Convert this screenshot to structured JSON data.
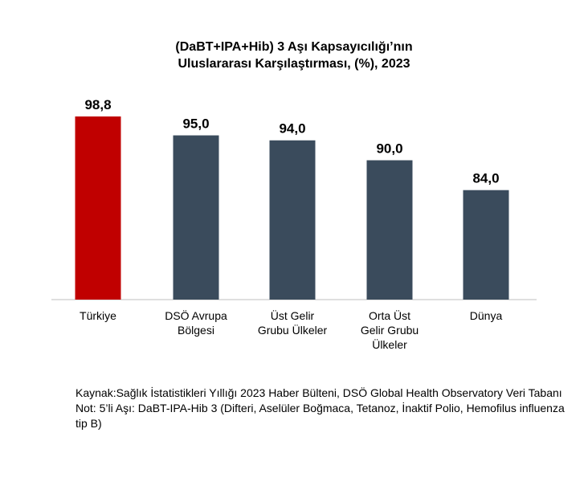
{
  "chart_data": {
    "type": "bar",
    "title_lines": [
      "(DaBT+IPA+Hib) 3 Aşı Kapsayıcılığı’nın",
      "Uluslararası Karşılaştırması, (%), 2023"
    ],
    "categories": [
      [
        "Türkiye"
      ],
      [
        "DSÖ Avrupa",
        "Bölgesi"
      ],
      [
        "Üst Gelir",
        "Grubu Ülkeler"
      ],
      [
        "Orta Üst",
        "Gelir Grubu",
        "Ülkeler"
      ],
      [
        "Dünya"
      ]
    ],
    "values": [
      98.8,
      95.0,
      94.0,
      90.0,
      84.0
    ],
    "value_labels": [
      "98,8",
      "95,0",
      "94,0",
      "90,0",
      "84,0"
    ],
    "bar_colors": [
      "#c00000",
      "#3a4b5c",
      "#3a4b5c",
      "#3a4b5c",
      "#3a4b5c"
    ],
    "xlabel": "",
    "ylabel": "",
    "grid": false,
    "legend": "none"
  },
  "footnote": {
    "lines": [
      "Kaynak:Sağlık İstatistikleri Yıllığı 2023 Haber Bülteni, DSÖ Global Health Observatory Veri Tabanı",
      "Not: 5’li Aşı: DaBT-IPA-Hib 3 (Difteri, Aselüler Boğmaca, Tetanoz, İnaktif Polio, Hemofilus influenza tip B)"
    ]
  }
}
